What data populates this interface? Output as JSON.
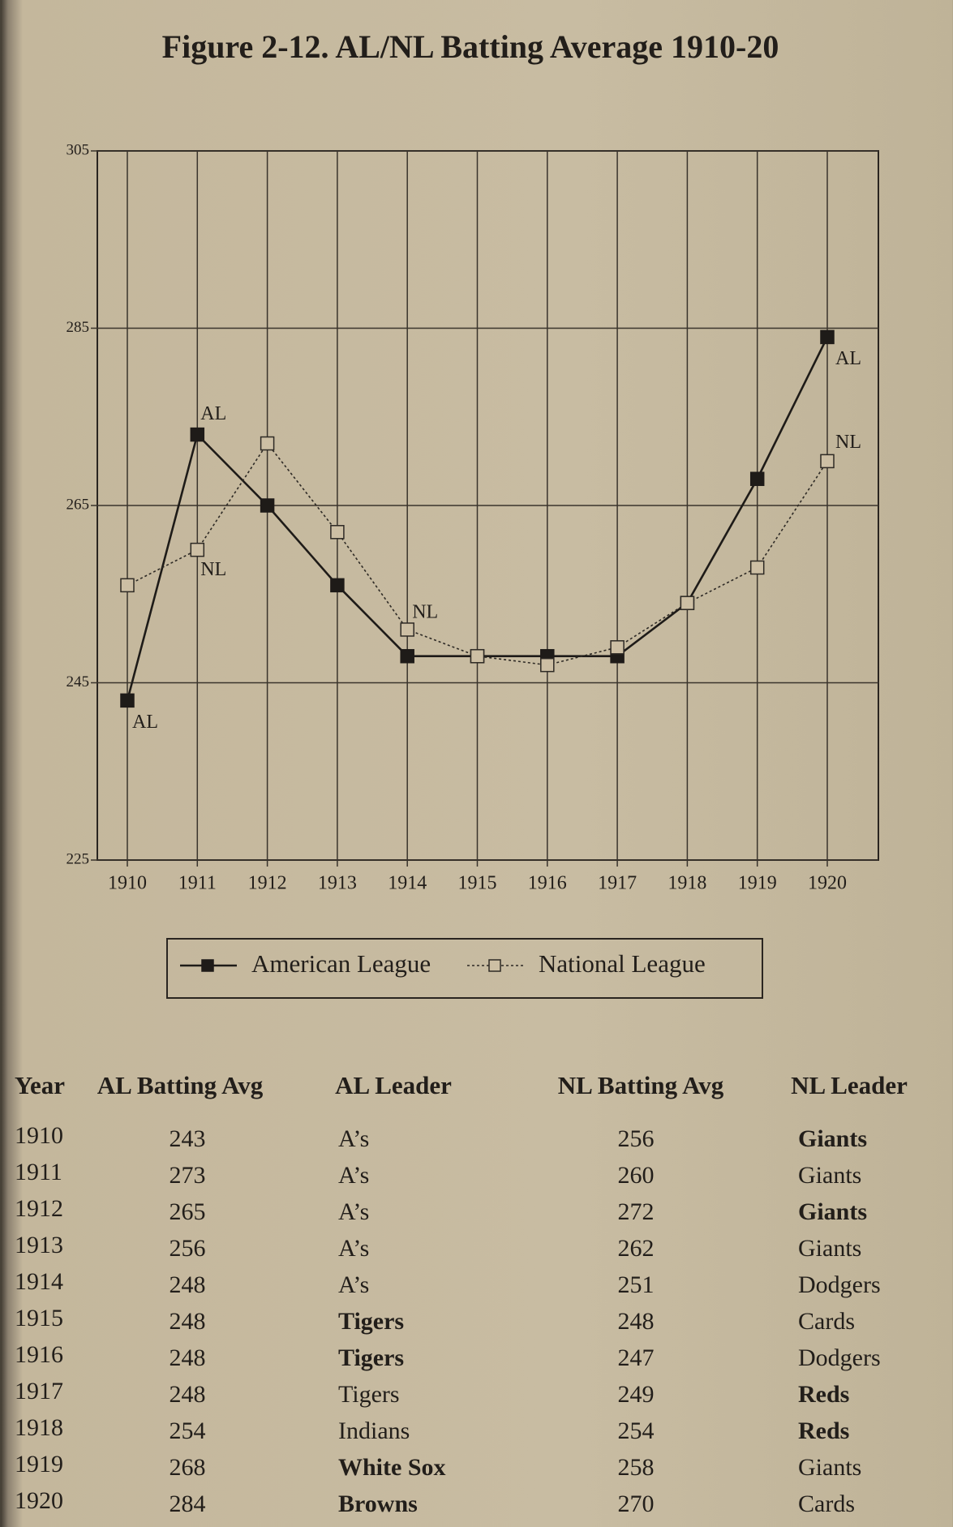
{
  "chart_data": {
    "type": "line",
    "title": "Figure 2-12. AL/NL Batting Average 1910-20",
    "categories": [
      "1910",
      "1911",
      "1912",
      "1913",
      "1914",
      "1915",
      "1916",
      "1917",
      "1918",
      "1919",
      "1920"
    ],
    "series": [
      {
        "name": "American League",
        "color": "#1e1b18",
        "values": [
          243,
          273,
          265,
          256,
          248,
          248,
          248,
          248,
          254,
          268,
          284
        ]
      },
      {
        "name": "National League",
        "color": "#2e2a25",
        "values": [
          256,
          260,
          272,
          262,
          251,
          248,
          247,
          249,
          254,
          258,
          270
        ]
      }
    ],
    "annotations": [
      "AL",
      "AL",
      "NL",
      "NL",
      "AL",
      "NL"
    ],
    "ylim": [
      225,
      305
    ],
    "yticks": [
      225,
      245,
      265,
      285,
      305
    ],
    "grid": true,
    "legend": "bottom"
  },
  "table": {
    "columns": [
      "Year",
      "AL Batting Avg",
      "AL Leader",
      "NL Batting Avg",
      "NL Leader"
    ],
    "rows": [
      [
        "1910",
        "243",
        "A’s",
        "256",
        "Giants"
      ],
      [
        "1911",
        "273",
        "A’s",
        "260",
        "Giants"
      ],
      [
        "1912",
        "265",
        "A’s",
        "272",
        "Giants"
      ],
      [
        "1913",
        "256",
        "A’s",
        "262",
        "Giants"
      ],
      [
        "1914",
        "248",
        "A’s",
        "251",
        "Dodgers"
      ],
      [
        "1915",
        "248",
        "Tigers",
        "248",
        "Cards"
      ],
      [
        "1916",
        "248",
        "Tigers",
        "247",
        "Dodgers"
      ],
      [
        "1917",
        "248",
        "Tigers",
        "249",
        "Reds"
      ],
      [
        "1918",
        "254",
        "Indians",
        "254",
        "Reds"
      ],
      [
        "1919",
        "268",
        "White Sox",
        "258",
        "Giants"
      ],
      [
        "1920",
        "284",
        "Browns",
        "270",
        "Cards"
      ]
    ]
  }
}
